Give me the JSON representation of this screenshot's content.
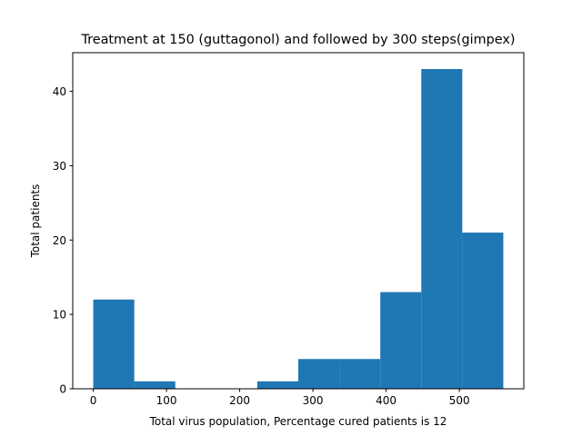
{
  "chart_data": {
    "type": "bar",
    "title": "Treatment at 150 (guttagonol) and followed by 300 steps(gimpex)",
    "xlabel": "Total virus population, Percentage cured patients is 12",
    "ylabel": "Total patients",
    "xlim": [
      -28,
      588
    ],
    "ylim": [
      0,
      45.2
    ],
    "xticks": [
      {
        "value": 0,
        "label": "0"
      },
      {
        "value": 100,
        "label": "100"
      },
      {
        "value": 200,
        "label": "200"
      },
      {
        "value": 300,
        "label": "300"
      },
      {
        "value": 400,
        "label": "400"
      },
      {
        "value": 500,
        "label": "500"
      }
    ],
    "yticks": [
      {
        "value": 0,
        "label": "0"
      },
      {
        "value": 10,
        "label": "10"
      },
      {
        "value": 20,
        "label": "20"
      },
      {
        "value": 30,
        "label": "30"
      },
      {
        "value": 40,
        "label": "40"
      }
    ],
    "bin_edges": [
      0,
      56,
      112,
      168,
      224,
      280,
      336,
      392,
      448,
      504,
      560
    ],
    "values": [
      12,
      1,
      0,
      0,
      1,
      4,
      4,
      13,
      43,
      21
    ],
    "bar_color": "#1f77b4",
    "grid": false,
    "legend": "none"
  }
}
